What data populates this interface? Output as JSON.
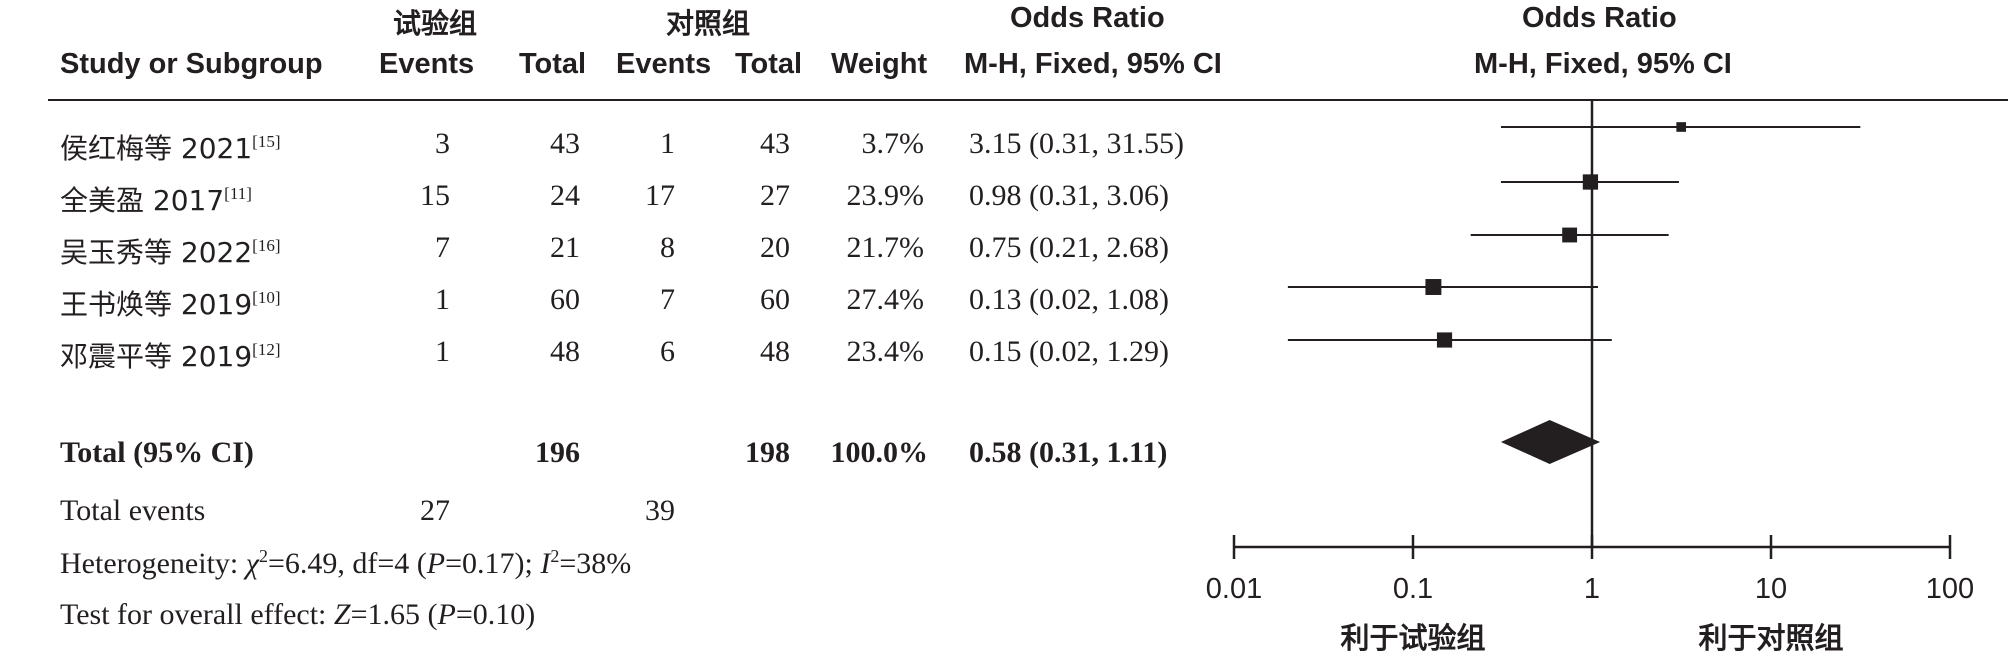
{
  "header": {
    "group_exp": "试验组",
    "group_ctrl": "对照组",
    "or_title_left": "Odds Ratio",
    "or_title_right": "Odds Ratio",
    "col_study": "Study or Subgroup",
    "col_events_exp": "Events",
    "col_total_exp": "Total",
    "col_events_ctrl": "Events",
    "col_total_ctrl": "Total",
    "col_weight": "Weight",
    "col_ci_left": "M-H, Fixed, 95% CI",
    "col_ci_right": "M-H, Fixed, 95% CI"
  },
  "studies": [
    {
      "name": "侯红梅等 2021",
      "ref": "[15]",
      "events_exp": "3",
      "total_exp": "43",
      "events_ctrl": "1",
      "total_ctrl": "43",
      "weight": "3.7%",
      "ci_text": "3.15 (0.31, 31.55)"
    },
    {
      "name": "全美盈 2017",
      "ref": "[11]",
      "events_exp": "15",
      "total_exp": "24",
      "events_ctrl": "17",
      "total_ctrl": "27",
      "weight": "23.9%",
      "ci_text": "0.98 (0.31, 3.06)"
    },
    {
      "name": "吴玉秀等 2022",
      "ref": "[16]",
      "events_exp": "7",
      "total_exp": "21",
      "events_ctrl": "8",
      "total_ctrl": "20",
      "weight": "21.7%",
      "ci_text": "0.75 (0.21, 2.68)"
    },
    {
      "name": "王书焕等 2019",
      "ref": "[10]",
      "events_exp": "1",
      "total_exp": "60",
      "events_ctrl": "7",
      "total_ctrl": "60",
      "weight": "27.4%",
      "ci_text": "0.13 (0.02, 1.08)"
    },
    {
      "name": "邓震平等 2019",
      "ref": "[12]",
      "events_exp": "1",
      "total_exp": "48",
      "events_ctrl": "6",
      "total_ctrl": "48",
      "weight": "23.4%",
      "ci_text": "0.15 (0.02, 1.29)"
    }
  ],
  "total": {
    "label": "Total (95% CI)",
    "total_exp": "196",
    "total_ctrl": "198",
    "weight": "100.0%",
    "ci_text": "0.58 (0.31, 1.11)"
  },
  "total_events": {
    "label": "Total events",
    "exp": "27",
    "ctrl": "39"
  },
  "heterogeneity": {
    "prefix": "Heterogeneity: ",
    "chi_symbol": "χ",
    "chi_sup": "2",
    "chi_rest": "=6.49, df=4 (",
    "p_symbol": "P",
    "p_rest": "=0.17); ",
    "i_symbol": "I",
    "i_sup": "2",
    "i_rest": "=38%"
  },
  "overall_effect": {
    "prefix": "Test for overall effect: ",
    "z_symbol": "Z",
    "z_rest": "=1.65 (",
    "p_symbol": "P",
    "p_rest": "=0.10)"
  },
  "chart_data": {
    "type": "forest",
    "scale": "log",
    "xlim": [
      0.01,
      100
    ],
    "ticks": [
      {
        "value": 0.01,
        "label": "0.01"
      },
      {
        "value": 0.1,
        "label": "0.1"
      },
      {
        "value": 1,
        "label": "1"
      },
      {
        "value": 10,
        "label": "10"
      },
      {
        "value": 100,
        "label": "100"
      }
    ],
    "reference_line": 1,
    "favours_left": "利于试验组",
    "favours_right": "利于对照组",
    "points": [
      {
        "or": 3.15,
        "lower": 0.31,
        "upper": 31.55,
        "weight": 3.7
      },
      {
        "or": 0.98,
        "lower": 0.31,
        "upper": 3.06,
        "weight": 23.9
      },
      {
        "or": 0.75,
        "lower": 0.21,
        "upper": 2.68,
        "weight": 21.7
      },
      {
        "or": 0.13,
        "lower": 0.02,
        "upper": 1.08,
        "weight": 27.4
      },
      {
        "or": 0.15,
        "lower": 0.02,
        "upper": 1.29,
        "weight": 23.4
      }
    ],
    "pooled": {
      "or": 0.58,
      "lower": 0.31,
      "upper": 1.11
    }
  }
}
